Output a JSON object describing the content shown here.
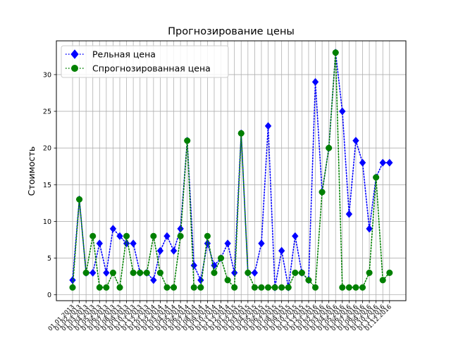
{
  "chart_data": {
    "type": "line",
    "title": "Прогнозирование цены",
    "ylabel": "Стоимость",
    "xlabel": "",
    "ylim": [
      -0.8,
      34.6
    ],
    "y_ticks": [
      0,
      5,
      10,
      15,
      20,
      25,
      30
    ],
    "grid": true,
    "legend_position": "top-left",
    "x": [
      "01.01.2013",
      "01.02.2013",
      "01.03.2013",
      "01.04.2013",
      "01.05.2013",
      "01.06.2013",
      "01.07.2013",
      "01.08.2013",
      "01.09.2013",
      "01.10.2013",
      "01.11.2013",
      "01.12.2013",
      "01.01.2014",
      "01.02.2014",
      "01.03.2014",
      "01.04.2014",
      "01.05.2014",
      "01.06.2014",
      "01.07.2014",
      "01.08.2014",
      "01.09.2014",
      "01.10.2014",
      "01.11.2014",
      "01.12.2014",
      "01.01.2015",
      "01.02.2015",
      "01.03.2015",
      "01.04.2015",
      "01.05.2015",
      "01.06.2015",
      "01.07.2015",
      "01.08.2015",
      "01.09.2015",
      "01.10.2015",
      "01.11.2015",
      "01.12.2015",
      "01.01.2016",
      "01.02.2016",
      "01.03.2016",
      "01.04.2016",
      "01.05.2016",
      "01.06.2016",
      "01.07.2016",
      "01.08.2016",
      "01.09.2016",
      "01.10.2016",
      "01.11.2016",
      "01.12.2016"
    ],
    "series": [
      {
        "name": "Рельная цена",
        "color": "#0000ff",
        "marker": "diamond",
        "values": [
          2,
          13,
          3,
          3,
          7,
          3,
          9,
          8,
          7,
          7,
          3,
          3,
          2,
          6,
          8,
          6,
          9,
          21,
          4,
          2,
          7,
          4,
          5,
          7,
          3,
          22,
          3,
          3,
          7,
          23,
          1,
          6,
          1,
          8,
          3,
          2,
          29,
          14,
          20,
          33,
          25,
          11,
          21,
          18,
          9,
          16,
          18,
          18
        ]
      },
      {
        "name": "Спрогнозированная цена",
        "color": "#008000",
        "marker": "circle",
        "values": [
          1,
          13,
          3,
          8,
          1,
          1,
          3,
          1,
          8,
          3,
          3,
          3,
          8,
          3,
          1,
          1,
          8,
          21,
          1,
          1,
          8,
          3,
          5,
          2,
          1,
          22,
          3,
          1,
          1,
          1,
          1,
          1,
          1,
          3,
          3,
          2,
          1,
          14,
          20,
          33,
          1,
          1,
          1,
          1,
          3,
          16,
          2,
          3
        ]
      }
    ]
  }
}
